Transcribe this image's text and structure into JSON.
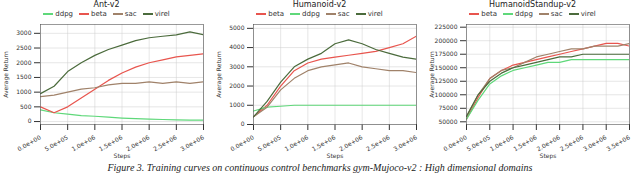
{
  "caption": "Figure 3. Training curves on continuous control benchmarks gym-Mujoco-v2 : High dimensional domains",
  "chart_data": [
    {
      "type": "line",
      "title": "Ant-v2",
      "x_label": "Steps",
      "y_label": "Average Return",
      "x": [
        0,
        250000,
        500000,
        750000,
        1000000,
        1250000,
        1500000,
        1750000,
        2000000,
        2250000,
        2500000,
        2750000,
        3000000
      ],
      "xlim": [
        0,
        3000000
      ],
      "xticks": [
        {
          "value": 0,
          "label": "0.0e+00"
        },
        {
          "value": 500000,
          "label": "5.0e+05"
        },
        {
          "value": 1000000,
          "label": "1.0e+06"
        },
        {
          "value": 1500000,
          "label": "1.5e+06"
        },
        {
          "value": 2000000,
          "label": "2.0e+06"
        },
        {
          "value": 2500000,
          "label": "2.5e+06"
        },
        {
          "value": 3000000,
          "label": "3.0e+06"
        }
      ],
      "ylim": [
        -100,
        3300
      ],
      "yticks": [
        0,
        500,
        1000,
        1500,
        2000,
        2500,
        3000
      ],
      "grid": true,
      "legend": "top",
      "series": [
        {
          "name": "ddpg",
          "color": "#5fd87a",
          "values": [
            400,
            300,
            250,
            200,
            180,
            150,
            120,
            100,
            80,
            70,
            60,
            50,
            50
          ]
        },
        {
          "name": "beta",
          "color": "#e8554e",
          "values": [
            500,
            300,
            500,
            800,
            1100,
            1400,
            1650,
            1850,
            2000,
            2100,
            2200,
            2250,
            2300
          ]
        },
        {
          "name": "sac",
          "color": "#a0826a",
          "values": [
            850,
            900,
            1000,
            1100,
            1150,
            1250,
            1300,
            1300,
            1350,
            1300,
            1350,
            1300,
            1350
          ]
        },
        {
          "name": "virel",
          "color": "#4b6b3c",
          "values": [
            950,
            1200,
            1700,
            2000,
            2250,
            2450,
            2600,
            2750,
            2850,
            2900,
            2950,
            3050,
            2950
          ]
        }
      ]
    },
    {
      "type": "line",
      "title": "Humanoid-v2",
      "x_label": "Steps",
      "y_label": "Average Return",
      "x": [
        0,
        250000,
        500000,
        750000,
        1000000,
        1250000,
        1500000,
        1750000,
        2000000,
        2250000,
        2500000,
        2750000,
        3000000
      ],
      "xlim": [
        0,
        3000000
      ],
      "xticks": [
        {
          "value": 0,
          "label": "0.0e+00"
        },
        {
          "value": 500000,
          "label": "5.0e+05"
        },
        {
          "value": 1000000,
          "label": "1.0e+06"
        },
        {
          "value": 1500000,
          "label": "1.5e+06"
        },
        {
          "value": 2000000,
          "label": "2.0e+06"
        },
        {
          "value": 2500000,
          "label": "2.5e+06"
        },
        {
          "value": 3000000,
          "label": "3.0e+06"
        }
      ],
      "ylim": [
        0,
        5200
      ],
      "yticks": [
        0,
        1000,
        2000,
        3000,
        4000,
        5000
      ],
      "grid": true,
      "legend": "top",
      "series": [
        {
          "name": "beta",
          "color": "#e8554e",
          "values": [
            400,
            1000,
            2000,
            2800,
            3200,
            3400,
            3500,
            3600,
            3700,
            3800,
            4000,
            4200,
            4600
          ]
        },
        {
          "name": "ddpg",
          "color": "#5fd87a",
          "values": [
            700,
            900,
            950,
            1000,
            1000,
            1000,
            1000,
            1000,
            1000,
            1000,
            1000,
            1000,
            1000
          ]
        },
        {
          "name": "sac",
          "color": "#a0826a",
          "values": [
            400,
            900,
            1800,
            2400,
            2800,
            3000,
            3100,
            3200,
            3000,
            2900,
            2800,
            2800,
            2700
          ]
        },
        {
          "name": "virel",
          "color": "#4b6b3c",
          "values": [
            400,
            1200,
            2200,
            3000,
            3400,
            3700,
            4200,
            4400,
            4200,
            3900,
            3700,
            3500,
            3400
          ]
        }
      ]
    },
    {
      "type": "line",
      "title": "HumanoidStandup-v2",
      "x_label": "Steps",
      "y_label": "Average Return",
      "x": [
        0,
        250000,
        500000,
        750000,
        1000000,
        1250000,
        1500000,
        1750000,
        2000000,
        2250000,
        2500000,
        2750000,
        3000000,
        3250000,
        3500000
      ],
      "xlim": [
        0,
        3500000
      ],
      "xticks": [
        {
          "value": 0,
          "label": "0.0e+00"
        },
        {
          "value": 500000,
          "label": "5.0e+05"
        },
        {
          "value": 1000000,
          "label": "1.0e+06"
        },
        {
          "value": 1500000,
          "label": "1.5e+06"
        },
        {
          "value": 2000000,
          "label": "2.0e+06"
        },
        {
          "value": 2500000,
          "label": "2.5e+06"
        },
        {
          "value": 3000000,
          "label": "3.0e+06"
        },
        {
          "value": 3500000,
          "label": "3.5e+06"
        }
      ],
      "ylim": [
        45000,
        230000
      ],
      "yticks": [
        50000,
        75000,
        100000,
        125000,
        150000,
        175000,
        200000,
        225000
      ],
      "grid": true,
      "legend": "top",
      "series": [
        {
          "name": "beta",
          "color": "#e8554e",
          "values": [
            55000,
            95000,
            130000,
            145000,
            155000,
            160000,
            165000,
            170000,
            175000,
            180000,
            185000,
            190000,
            195000,
            195000,
            190000
          ]
        },
        {
          "name": "ddpg",
          "color": "#5fd87a",
          "values": [
            55000,
            90000,
            120000,
            135000,
            145000,
            150000,
            155000,
            160000,
            160000,
            165000,
            165000,
            165000,
            165000,
            165000,
            165000
          ]
        },
        {
          "name": "sac",
          "color": "#a0826a",
          "values": [
            60000,
            100000,
            130000,
            145000,
            150000,
            160000,
            170000,
            175000,
            180000,
            185000,
            185000,
            190000,
            190000,
            190000,
            195000
          ]
        },
        {
          "name": "virel",
          "color": "#4b6b3c",
          "values": [
            60000,
            100000,
            125000,
            140000,
            150000,
            155000,
            160000,
            165000,
            170000,
            170000,
            175000,
            175000,
            175000,
            175000,
            175000
          ]
        }
      ]
    }
  ]
}
